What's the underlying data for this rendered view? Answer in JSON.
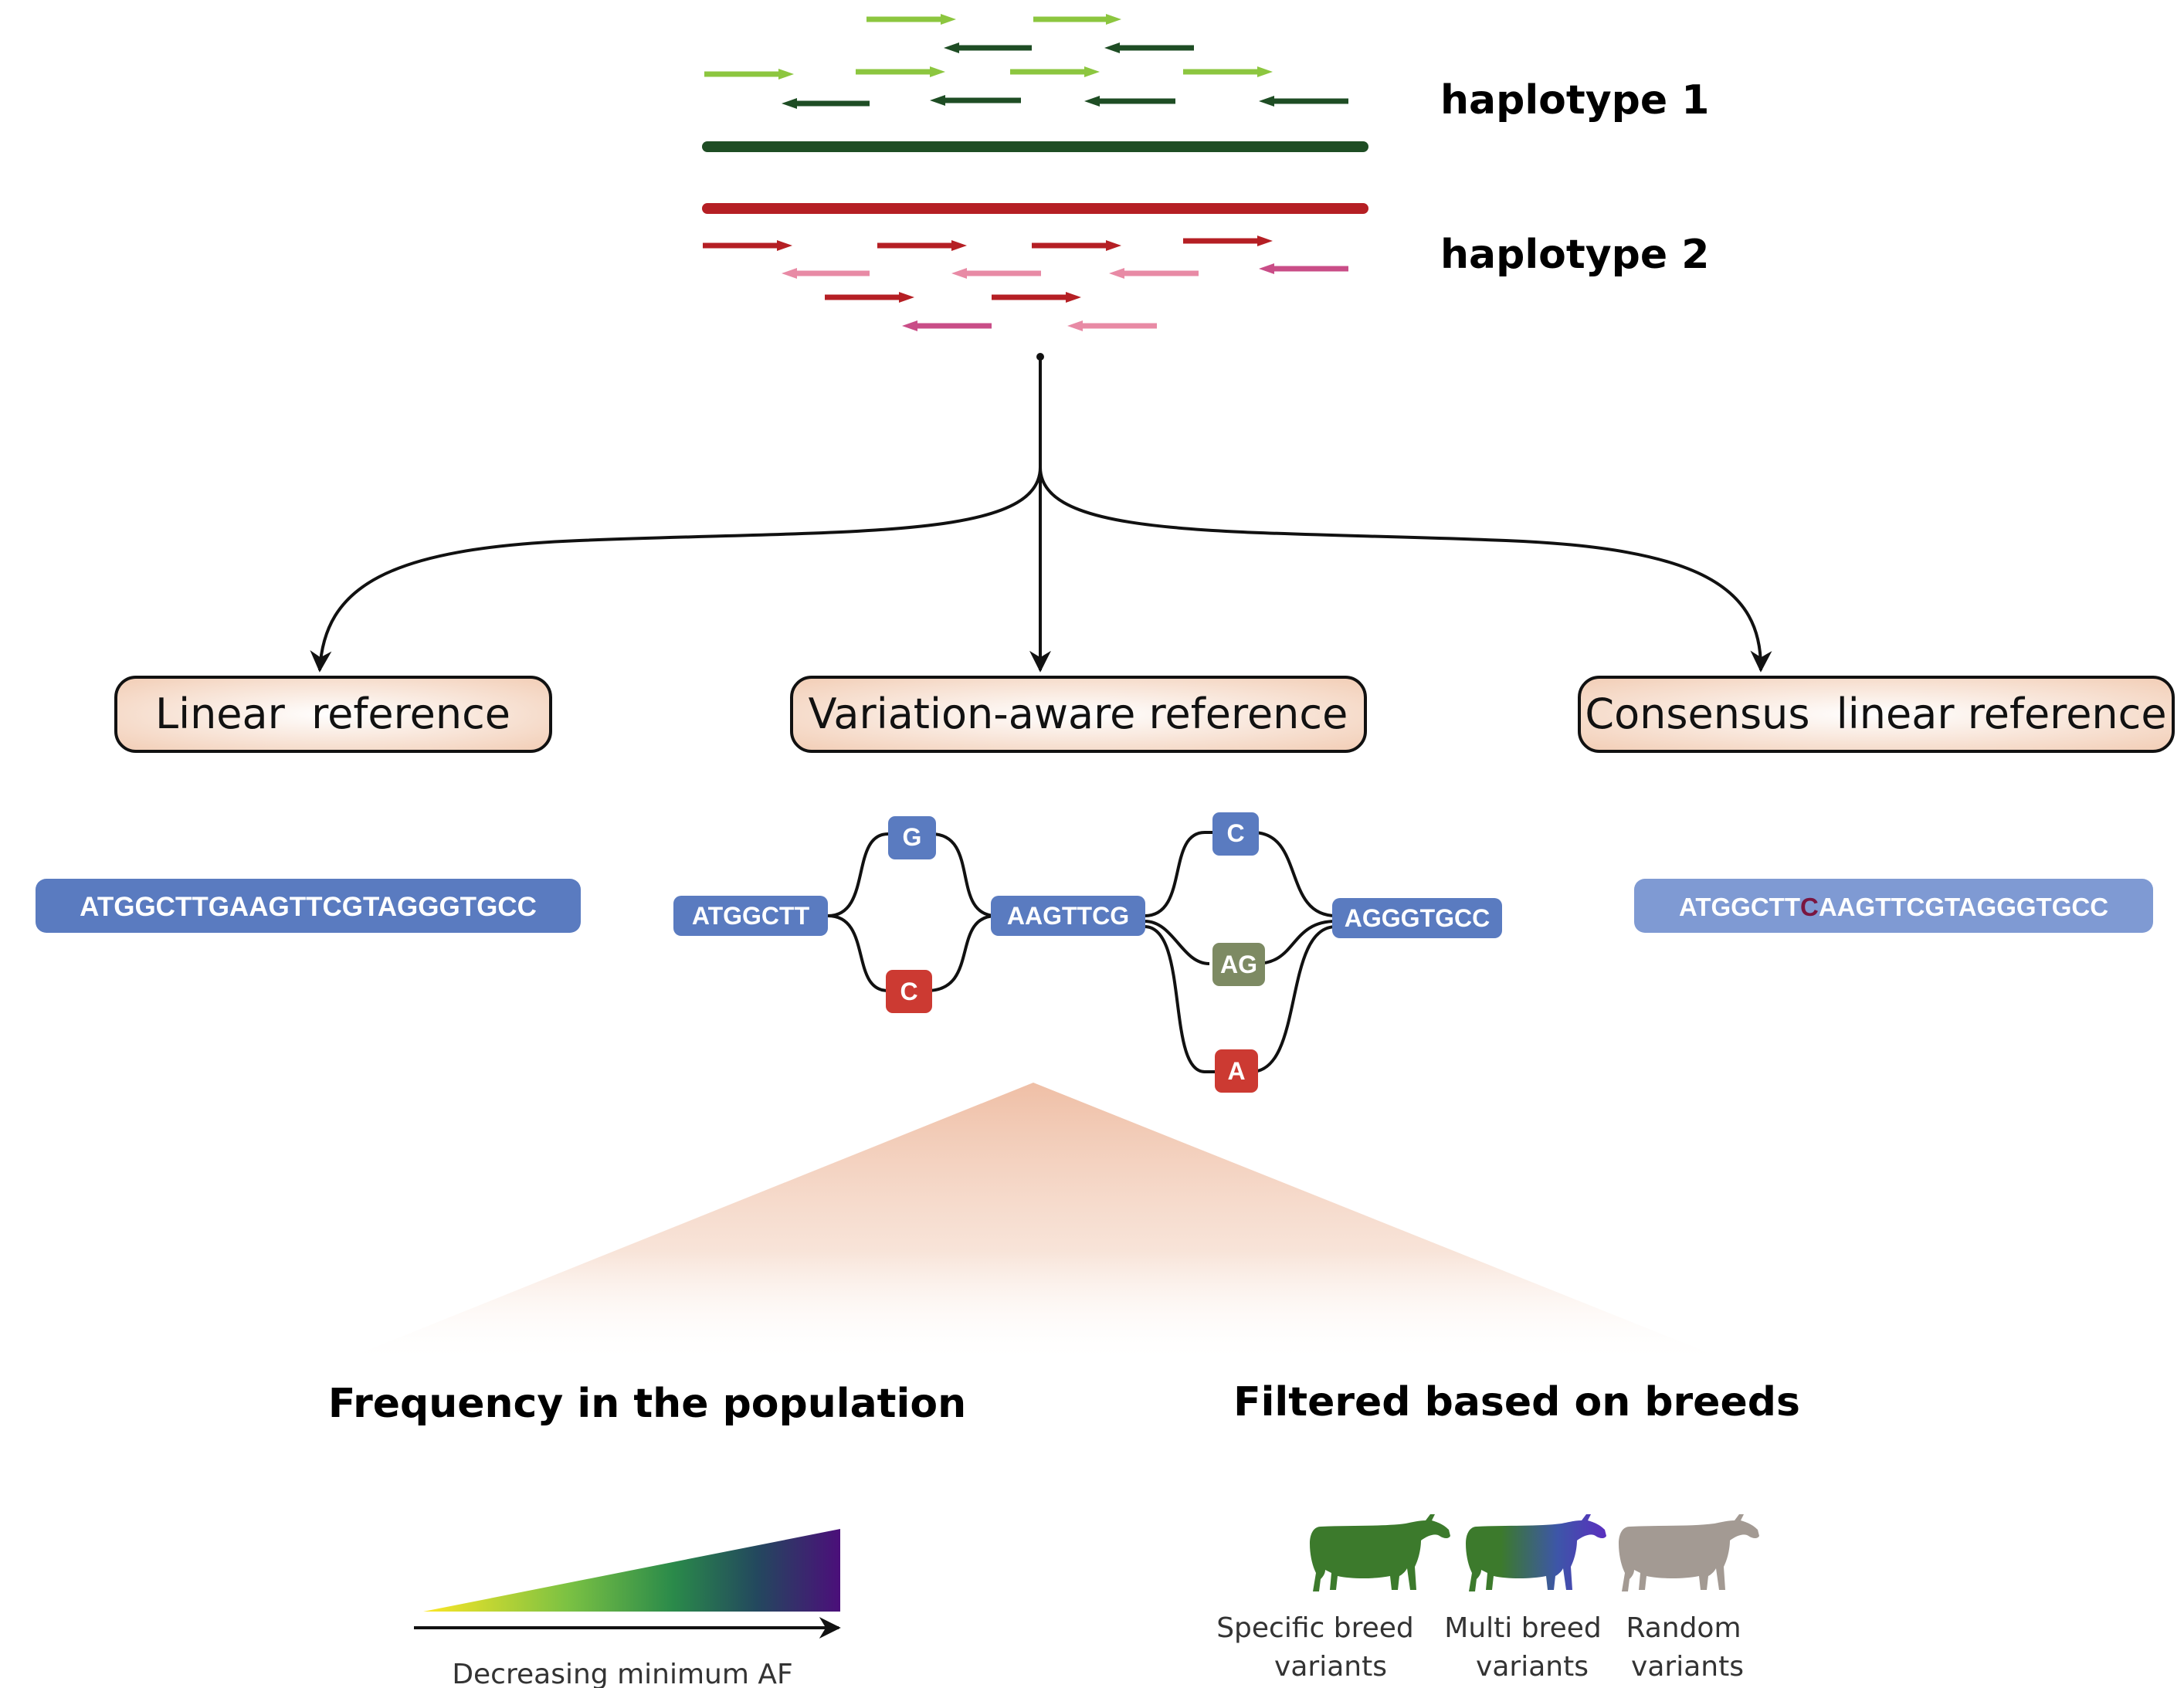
{
  "haplotypes": {
    "hap1_label": "haplotype 1",
    "hap2_label": "haplotype 2",
    "colors": {
      "hap1_line": "#1e4d24",
      "hap1_read_light": "#8cc63f",
      "hap1_read_dark": "#1e4d24",
      "hap2_line": "#b51f24",
      "hap2_read_red": "#b51f24",
      "hap2_read_pink": "#e88aa5",
      "hap2_read_magenta": "#c94d87"
    }
  },
  "references": {
    "linear": "Linear  reference",
    "variation_aware": "Variation-aware reference",
    "consensus": "Consensus  linear reference"
  },
  "sequences": {
    "linear": "ATGGCTTGAAGTTCGTAGGGTGCC",
    "consensus_before": "ATGGCTT",
    "consensus_variant": "C",
    "consensus_after": "AAGTTCGTAGGGTGCC"
  },
  "graph": {
    "n1": "ATGGCTT",
    "n2a": "G",
    "n2b": "C",
    "n3": "AAGTTCG",
    "n4a": "C",
    "n4b": "AG",
    "n4c": "A",
    "n5": "AGGGTGCC",
    "colors": {
      "blue": "#5a7bc0",
      "red": "#cc3a32",
      "olive": "#7d8a63"
    }
  },
  "sections": {
    "frequency": "Frequency in the population",
    "filtered": "Filtered based on breeds"
  },
  "gradient": {
    "axis_label": "Decreasing minimum AF"
  },
  "breeds": {
    "specific_l1": "Specific breed",
    "specific_l2": "variants",
    "multi_l1": "Multi breed",
    "multi_l2": "variants",
    "random_l1": "Random",
    "random_l2": "variants",
    "colors": {
      "specific": "#3c7a2c",
      "multi_end": "#5a2fbf",
      "random": "#a39a93"
    }
  }
}
